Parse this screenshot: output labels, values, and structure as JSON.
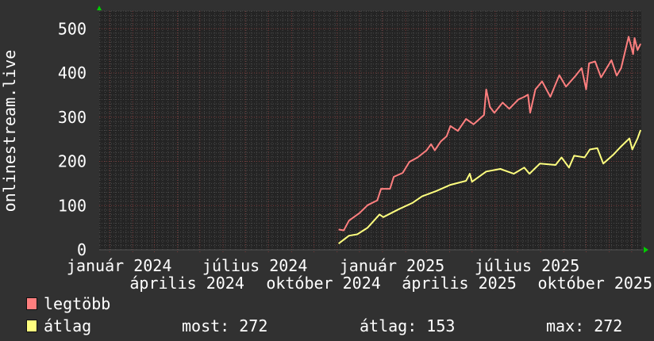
{
  "chart_data": {
    "type": "line",
    "title": "",
    "ylabel": "onlinestream.live",
    "xlabel": "",
    "xlim": [
      "2023-12-18",
      "2025-12-14"
    ],
    "ylim": [
      0,
      540
    ],
    "yticks": [
      0,
      100,
      200,
      300,
      400,
      500
    ],
    "xtick_labels": [
      {
        "date": "2024-01-01",
        "label": "január 2024"
      },
      {
        "date": "2024-04-01",
        "label": "április 2024"
      },
      {
        "date": "2024-07-01",
        "label": "július 2024"
      },
      {
        "date": "2024-10-01",
        "label": "október 2024"
      },
      {
        "date": "2025-01-01",
        "label": "január 2025"
      },
      {
        "date": "2025-04-01",
        "label": "április 2025"
      },
      {
        "date": "2025-07-01",
        "label": "július 2025"
      },
      {
        "date": "2025-10-01",
        "label": "október 2025"
      }
    ],
    "grid": true,
    "legend_position": "bottom-left",
    "series": [
      {
        "name": "legtöbb",
        "color": "#ff7f7f",
        "points": [
          [
            "2024-11-03",
            46
          ],
          [
            "2024-11-10",
            44
          ],
          [
            "2024-11-17",
            66
          ],
          [
            "2024-12-01",
            83
          ],
          [
            "2024-12-12",
            101
          ],
          [
            "2024-12-25",
            112
          ],
          [
            "2024-12-30",
            138
          ],
          [
            "2025-01-11",
            138
          ],
          [
            "2025-01-16",
            165
          ],
          [
            "2025-01-28",
            174
          ],
          [
            "2025-02-06",
            199
          ],
          [
            "2025-02-17",
            209
          ],
          [
            "2025-03-01",
            225
          ],
          [
            "2025-03-07",
            239
          ],
          [
            "2025-03-12",
            225
          ],
          [
            "2025-03-20",
            245
          ],
          [
            "2025-03-28",
            257
          ],
          [
            "2025-04-02",
            280
          ],
          [
            "2025-04-12",
            269
          ],
          [
            "2025-04-23",
            296
          ],
          [
            "2025-05-03",
            284
          ],
          [
            "2025-05-17",
            305
          ],
          [
            "2025-05-20",
            363
          ],
          [
            "2025-05-25",
            323
          ],
          [
            "2025-05-31",
            310
          ],
          [
            "2025-06-11",
            333
          ],
          [
            "2025-06-20",
            319
          ],
          [
            "2025-07-02",
            340
          ],
          [
            "2025-07-10",
            346
          ],
          [
            "2025-07-15",
            351
          ],
          [
            "2025-07-18",
            310
          ],
          [
            "2025-07-25",
            363
          ],
          [
            "2025-08-03",
            381
          ],
          [
            "2025-08-14",
            346
          ],
          [
            "2025-08-26",
            395
          ],
          [
            "2025-09-04",
            369
          ],
          [
            "2025-09-17",
            394
          ],
          [
            "2025-09-25",
            411
          ],
          [
            "2025-10-01",
            363
          ],
          [
            "2025-10-05",
            422
          ],
          [
            "2025-10-13",
            426
          ],
          [
            "2025-10-21",
            390
          ],
          [
            "2025-11-04",
            429
          ],
          [
            "2025-11-11",
            394
          ],
          [
            "2025-11-17",
            411
          ],
          [
            "2025-11-27",
            482
          ],
          [
            "2025-12-03",
            443
          ],
          [
            "2025-12-05",
            479
          ],
          [
            "2025-12-09",
            452
          ],
          [
            "2025-12-13",
            466
          ]
        ]
      },
      {
        "name": "átlag",
        "color": "#ffff7f",
        "points": [
          [
            "2024-11-03",
            14
          ],
          [
            "2024-11-17",
            32
          ],
          [
            "2024-11-28",
            35
          ],
          [
            "2024-12-12",
            50
          ],
          [
            "2024-12-28",
            80
          ],
          [
            "2025-01-02",
            74
          ],
          [
            "2025-01-23",
            92
          ],
          [
            "2025-02-10",
            106
          ],
          [
            "2025-02-23",
            121
          ],
          [
            "2025-03-14",
            133
          ],
          [
            "2025-04-02",
            147
          ],
          [
            "2025-04-23",
            156
          ],
          [
            "2025-04-28",
            172
          ],
          [
            "2025-05-01",
            154
          ],
          [
            "2025-05-20",
            177
          ],
          [
            "2025-06-08",
            183
          ],
          [
            "2025-06-26",
            172
          ],
          [
            "2025-07-10",
            186
          ],
          [
            "2025-07-17",
            172
          ],
          [
            "2025-07-31",
            195
          ],
          [
            "2025-08-21",
            192
          ],
          [
            "2025-08-29",
            209
          ],
          [
            "2025-09-08",
            186
          ],
          [
            "2025-09-15",
            213
          ],
          [
            "2025-09-29",
            209
          ],
          [
            "2025-10-06",
            227
          ],
          [
            "2025-10-16",
            230
          ],
          [
            "2025-10-24",
            195
          ],
          [
            "2025-11-07",
            216
          ],
          [
            "2025-11-17",
            234
          ],
          [
            "2025-11-28",
            252
          ],
          [
            "2025-12-02",
            227
          ],
          [
            "2025-12-09",
            252
          ],
          [
            "2025-12-13",
            271
          ]
        ]
      }
    ]
  },
  "legend": {
    "items": [
      {
        "label": "legtöbb",
        "color": "#ff7f7f"
      },
      {
        "label": "átlag",
        "color": "#ffff7f"
      }
    ],
    "stats": {
      "most": "most: 272",
      "atlag": "átlag: 153",
      "max": "max: 272"
    }
  }
}
